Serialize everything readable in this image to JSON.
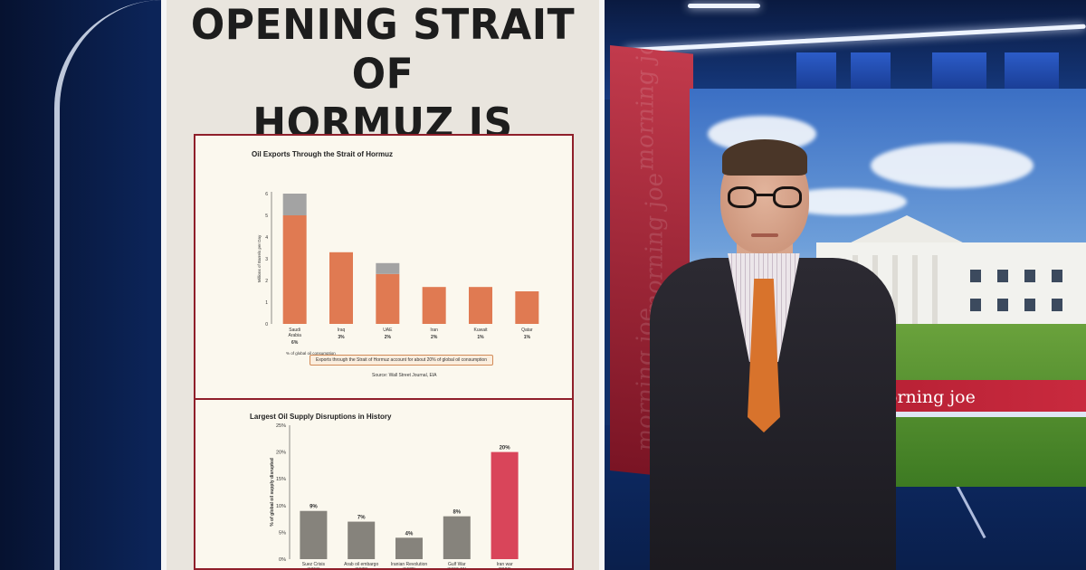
{
  "board": {
    "title_line1": "OPENING STRAIT OF",
    "title_line2": "HORMUZ IS CRITICAL"
  },
  "chart_data": [
    {
      "type": "bar",
      "title": "Oil Exports Through the Strait of Hormuz",
      "ylabel": "Millions of Barrels per Day",
      "ylim": [
        0,
        6
      ],
      "yticks": [
        "0",
        "1",
        "2",
        "3",
        "4",
        "5",
        "6"
      ],
      "categories": [
        "Saudi Arabia",
        "Iraq",
        "UAE",
        "Iran",
        "Kuwait",
        "Qatar"
      ],
      "category_sublabels": [
        "6%",
        "3%",
        "2%",
        "2%",
        "1%",
        "1%"
      ],
      "series": [
        {
          "values": [
            5.0,
            3.3,
            2.3,
            1.7,
            1.7,
            1.5
          ],
          "color": "#e07a52"
        },
        {
          "values": [
            1.0,
            0.0,
            0.5,
            0.0,
            0.0,
            0.0
          ],
          "color": "#a3a3a3"
        }
      ],
      "sublabel_caption": "% of global oil consumption",
      "callout": "Exports through the Strait of Hormuz account for about 20% of global oil consumption",
      "source": "Source: Wall Street Journal, EIA"
    },
    {
      "type": "bar",
      "title": "Largest Oil Supply Disruptions in History",
      "ylabel": "% of global oil supply disrupted",
      "ylim": [
        0,
        25
      ],
      "yticks": [
        "0%",
        "5%",
        "10%",
        "15%",
        "20%",
        "25%"
      ],
      "categories": [
        "Suez Crisis (1956)",
        "Arab oil embargo (1973)",
        "Iranian Revolution (1979)",
        "Gulf War (1990-91)",
        "Iran war (2026)"
      ],
      "values": [
        9,
        7,
        4,
        8,
        20
      ],
      "data_labels": [
        "9%",
        "7%",
        "4%",
        "8%",
        "20%"
      ],
      "colors": [
        "#86837c",
        "#86837c",
        "#86837c",
        "#86837c",
        "#d9455a"
      ]
    }
  ],
  "video_wall": {
    "brand_text": "morning joe"
  }
}
